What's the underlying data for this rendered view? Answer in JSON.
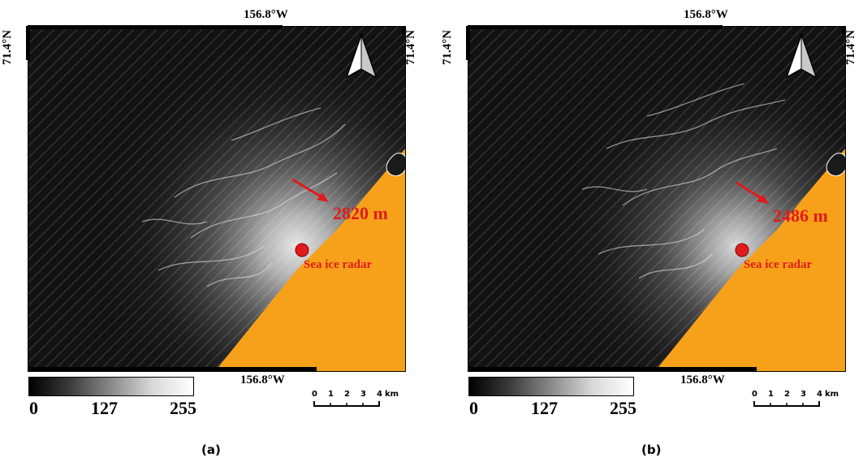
{
  "panels": [
    {
      "id": "a",
      "caption": "(a)",
      "lon_top": "156.8°W",
      "lon_bottom": "156.8°W",
      "lat_left": "71.4°N",
      "lat_right": "71.4°N",
      "distance_label": "2820 m",
      "radar_label": "Sea ice radar",
      "colorbar_ticks": [
        "0",
        "127",
        "255"
      ],
      "scale_ticks": [
        "0",
        "1",
        "2",
        "3",
        "4"
      ],
      "scale_unit": "km"
    },
    {
      "id": "b",
      "caption": "(b)",
      "lon_top": "156.8°W",
      "lon_bottom": "156.8°W",
      "lat_left": "71.4°N",
      "lat_right": "71.4°N",
      "distance_label": "2486 m",
      "radar_label": "Sea ice radar",
      "colorbar_ticks": [
        "0",
        "127",
        "255"
      ],
      "scale_ticks": [
        "0",
        "1",
        "2",
        "3",
        "4"
      ],
      "scale_unit": "km"
    }
  ],
  "colors": {
    "land": "#f7a11a",
    "marker": "#e01b1b",
    "background": "#121212"
  },
  "icons": {
    "north_arrow": "north-arrow-icon",
    "radar_marker": "radar-location-icon",
    "direction_arrow": "arrow-icon"
  }
}
